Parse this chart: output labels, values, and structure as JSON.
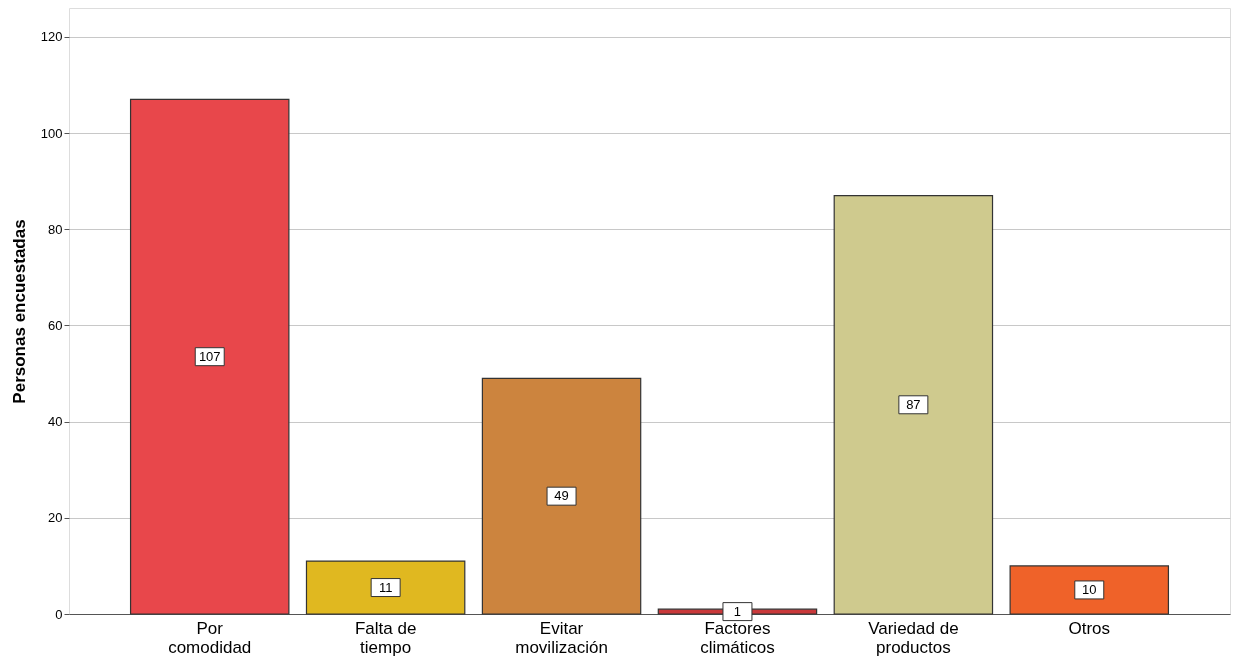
{
  "chart_data": {
    "type": "bar",
    "ylabel": "Personas encuestadas",
    "categories": [
      "Por comodidad",
      "Falta de tiempo",
      "Evitar movilización",
      "Factores climáticos",
      "Variedad de productos",
      "Otros"
    ],
    "values": [
      107,
      11,
      49,
      1,
      87,
      10
    ],
    "colors": [
      "#e8474b",
      "#e0b820",
      "#cc843e",
      "#c9383a",
      "#cfca8e",
      "#ef6229"
    ],
    "ylim": [
      0,
      126
    ],
    "yticks": [
      0,
      20,
      40,
      60,
      80,
      100,
      120
    ],
    "grid": "y",
    "data_labels": true
  }
}
